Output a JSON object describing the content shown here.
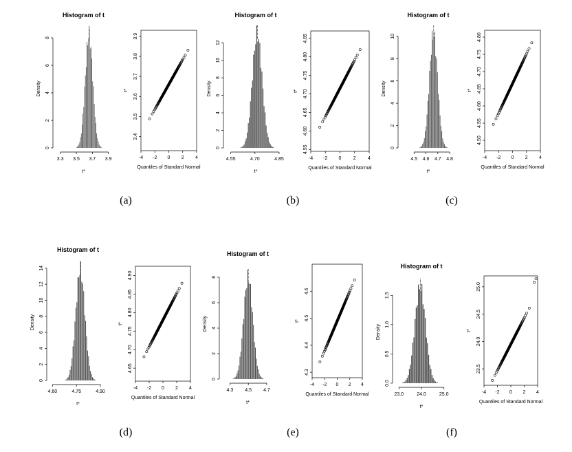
{
  "captions": [
    "(a)",
    "(b)",
    "(c)",
    "(d)",
    "(e)",
    "(f)"
  ],
  "colors": {
    "bar": "#4d4d4d",
    "point": "#000000",
    "axis": "#000000"
  },
  "chart_data": [
    {
      "panel": "(a)",
      "type": "bar",
      "title": "Histogram of t",
      "xlabel": "t*",
      "ylabel": "Density",
      "xlim": [
        3.26,
        3.92
      ],
      "ylim": [
        0,
        8.6
      ],
      "xticks": [
        "3.3",
        "3.5",
        "3.7",
        "3.9"
      ],
      "xtickvals": [
        3.3,
        3.5,
        3.7,
        3.9
      ],
      "yticks": [
        "0",
        "2",
        "4",
        "6",
        "8"
      ],
      "ytickvals": [
        0,
        2,
        4,
        6,
        8
      ],
      "mean": 3.66,
      "sd": 0.048,
      "peak": 8.2,
      "bins": 40,
      "marker_x": 3.66
    },
    {
      "panel": "(a)",
      "type": "scatter",
      "xlabel": "Quantiles of Standard Normal",
      "ylabel": "t*",
      "xlim": [
        -4,
        4
      ],
      "ylim": [
        3.33,
        3.93
      ],
      "xticks": [
        "-4",
        "-2",
        "0",
        "2",
        "4"
      ],
      "xtickvals": [
        -4,
        -2,
        0,
        2,
        4
      ],
      "yticks": [
        "3.4",
        "3.5",
        "3.6",
        "3.7",
        "3.8",
        "3.9"
      ],
      "ytickvals": [
        3.4,
        3.5,
        3.6,
        3.7,
        3.8,
        3.9
      ],
      "mean": 3.66,
      "sd": 0.062,
      "qlim": 3.5
    },
    {
      "panel": "(b)",
      "type": "bar",
      "title": "Histogram of t",
      "xlabel": "t*",
      "ylabel": "Density",
      "xlim": [
        4.53,
        4.88
      ],
      "ylim": [
        0,
        13.5
      ],
      "xticks": [
        "4.55",
        "4.70",
        "4.85"
      ],
      "xtickvals": [
        4.55,
        4.7,
        4.85
      ],
      "yticks": [
        "0",
        "2",
        "4",
        "6",
        "8",
        "10",
        "12"
      ],
      "ytickvals": [
        0,
        2,
        4,
        6,
        8,
        10,
        12
      ],
      "mean": 4.715,
      "sd": 0.031,
      "peak": 13.0,
      "bins": 40,
      "marker_x": 4.715
    },
    {
      "panel": "(b)",
      "type": "scatter",
      "xlabel": "Quantiles of Standard Normal",
      "ylabel": "t*",
      "xlim": [
        -4,
        4
      ],
      "ylim": [
        4.545,
        4.87
      ],
      "xticks": [
        "-4",
        "-2",
        "0",
        "2",
        "4"
      ],
      "xtickvals": [
        -4,
        -2,
        0,
        2,
        4
      ],
      "yticks": [
        "4.55",
        "4.60",
        "4.65",
        "4.70",
        "4.75",
        "4.80",
        "4.85"
      ],
      "ytickvals": [
        4.55,
        4.6,
        4.65,
        4.7,
        4.75,
        4.8,
        4.85
      ],
      "mean": 4.715,
      "sd": 0.038,
      "qlim": 3.5
    },
    {
      "panel": "(c)",
      "type": "bar",
      "title": "Histogram of t",
      "xlabel": "t*",
      "ylabel": "Density",
      "xlim": [
        4.4,
        4.84
      ],
      "ylim": [
        0,
        10.6
      ],
      "xticks": [
        "4.5",
        "4.6",
        "4.7",
        "4.8"
      ],
      "xtickvals": [
        4.5,
        4.6,
        4.7,
        4.8
      ],
      "yticks": [
        "0",
        "2",
        "4",
        "6",
        "8",
        "10"
      ],
      "ytickvals": [
        0,
        2,
        4,
        6,
        8,
        10
      ],
      "mean": 4.665,
      "sd": 0.035,
      "peak": 10.2,
      "bins": 40,
      "marker_x": 4.665
    },
    {
      "panel": "(c)",
      "type": "scatter",
      "xlabel": "Quantiles of Standard Normal",
      "ylabel": "t*",
      "xlim": [
        -4,
        4
      ],
      "ylim": [
        4.47,
        4.82
      ],
      "xticks": [
        "-4",
        "-2",
        "0",
        "2",
        "4"
      ],
      "xtickvals": [
        -4,
        -2,
        0,
        2,
        4
      ],
      "yticks": [
        "4.50",
        "4.55",
        "4.60",
        "4.65",
        "4.70",
        "4.75",
        "4.80"
      ],
      "ytickvals": [
        4.5,
        4.55,
        4.6,
        4.65,
        4.7,
        4.75,
        4.8
      ],
      "mean": 4.665,
      "sd": 0.043,
      "qlim": 3.5
    },
    {
      "panel": "(d)",
      "type": "bar",
      "title": "Histogram of t",
      "xlabel": "t*",
      "ylabel": "Density",
      "xlim": [
        4.59,
        4.93
      ],
      "ylim": [
        0,
        14.5
      ],
      "xticks": [
        "4.60",
        "4.75",
        "4.90"
      ],
      "xtickvals": [
        4.6,
        4.75,
        4.9
      ],
      "yticks": [
        "0",
        "2",
        "4",
        "6",
        "8",
        "10",
        "12",
        "14"
      ],
      "ytickvals": [
        0,
        2,
        4,
        6,
        8,
        10,
        12,
        14
      ],
      "mean": 4.775,
      "sd": 0.029,
      "peak": 13.8,
      "bins": 40,
      "marker_x": 4.775
    },
    {
      "panel": "(d)",
      "type": "scatter",
      "xlabel": "Quantiles of Standard Normal",
      "ylabel": "t*",
      "xlim": [
        -4,
        4
      ],
      "ylim": [
        4.615,
        4.925
      ],
      "xticks": [
        "-4",
        "-2",
        "0",
        "2",
        "4"
      ],
      "xtickvals": [
        -4,
        -2,
        0,
        2,
        4
      ],
      "yticks": [
        "4.65",
        "4.70",
        "4.75",
        "4.80",
        "4.85",
        "4.90"
      ],
      "ytickvals": [
        4.65,
        4.7,
        4.75,
        4.8,
        4.85,
        4.9
      ],
      "mean": 4.78,
      "sd": 0.036,
      "qlim": 3.5
    },
    {
      "panel": "(e)",
      "type": "bar",
      "title": "Histogram of t",
      "xlabel": "t*",
      "ylabel": "Density",
      "xlim": [
        4.23,
        4.76
      ],
      "ylim": [
        0,
        8.7
      ],
      "xticks": [
        "4.3",
        "4.5",
        "4.7"
      ],
      "xtickvals": [
        4.3,
        4.5,
        4.7
      ],
      "yticks": [
        "0",
        "2",
        "4",
        "6",
        "8"
      ],
      "ytickvals": [
        0,
        2,
        4,
        6,
        8
      ],
      "mean": 4.5,
      "sd": 0.05,
      "peak": 8.0,
      "bins": 40,
      "marker_x": 4.5
    },
    {
      "panel": "(e)",
      "type": "scatter",
      "xlabel": "Quantiles of Standard Normal",
      "ylabel": "t*",
      "xlim": [
        -4,
        4
      ],
      "ylim": [
        4.28,
        4.7
      ],
      "xticks": [
        "-4",
        "-2",
        "0",
        "2",
        "4"
      ],
      "xtickvals": [
        -4,
        -2,
        0,
        2,
        4
      ],
      "yticks": [
        "4.3",
        "4.4",
        "4.5",
        "4.6"
      ],
      "ytickvals": [
        4.3,
        4.4,
        4.5,
        4.6
      ],
      "mean": 4.49,
      "sd": 0.055,
      "qlim": 3.5
    },
    {
      "panel": "(f)",
      "type": "bar",
      "title": "Histogram of t",
      "xlabel": "t*",
      "ylabel": "Density",
      "xlim": [
        22.9,
        25.1
      ],
      "ylim": [
        0,
        1.75
      ],
      "xticks": [
        "23.0",
        "24.0",
        "25.0"
      ],
      "xtickvals": [
        23.0,
        24.0,
        25.0
      ],
      "yticks": [
        "0.0",
        "0.5",
        "1.0",
        "1.5"
      ],
      "ytickvals": [
        0.0,
        0.5,
        1.0,
        1.5
      ],
      "mean": 23.95,
      "sd": 0.24,
      "peak": 1.65,
      "bins": 40,
      "marker_x": 23.95
    },
    {
      "panel": "(f)",
      "type": "scatter",
      "xlabel": "Quantiles of Standard Normal",
      "ylabel": "t*",
      "xlim": [
        -4,
        4
      ],
      "ylim": [
        23.2,
        25.2
      ],
      "xticks": [
        "-4",
        "-2",
        "0",
        "2",
        "4"
      ],
      "xtickvals": [
        -4,
        -2,
        0,
        2,
        4
      ],
      "yticks": [
        "23.5",
        "24.0",
        "24.5",
        "25.0"
      ],
      "ytickvals": [
        23.5,
        24.0,
        24.5,
        25.0
      ],
      "mean": 23.95,
      "sd": 0.24,
      "qlim": 3.5,
      "outliers": [
        [
          3.5,
          25.08
        ],
        [
          3.75,
          25.15
        ]
      ]
    }
  ]
}
